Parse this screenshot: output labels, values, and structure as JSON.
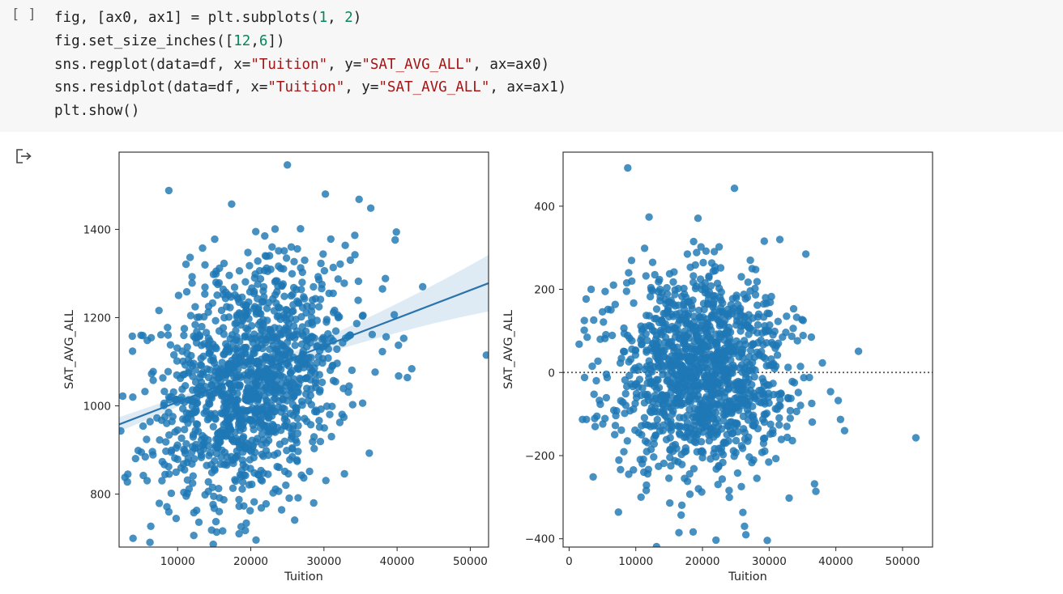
{
  "cell": {
    "run_indicator": "[ ]",
    "code_lines": [
      [
        {
          "t": "fig, [ax0, ax1] = plt.subplots("
        },
        {
          "t": "1",
          "c": "n"
        },
        {
          "t": ", "
        },
        {
          "t": "2",
          "c": "n"
        },
        {
          "t": ")"
        }
      ],
      [
        {
          "t": "fig.set_size_inches(["
        },
        {
          "t": "12",
          "c": "n"
        },
        {
          "t": ","
        },
        {
          "t": "6",
          "c": "n"
        },
        {
          "t": "])"
        }
      ],
      [
        {
          "t": "sns.regplot(data=df, x="
        },
        {
          "t": "\"Tuition\"",
          "c": "s"
        },
        {
          "t": ", y="
        },
        {
          "t": "\"SAT_AVG_ALL\"",
          "c": "s"
        },
        {
          "t": ", ax=ax0)"
        }
      ],
      [
        {
          "t": "sns.residplot(data=df, x="
        },
        {
          "t": "\"Tuition\"",
          "c": "s"
        },
        {
          "t": ", y="
        },
        {
          "t": "\"SAT_AVG_ALL\"",
          "c": "s"
        },
        {
          "t": ", ax=ax1)"
        }
      ],
      [
        {
          "t": "plt.show()"
        }
      ]
    ],
    "output_icon": "output-arrow-icon"
  },
  "colors": {
    "point": "#1f77b4",
    "fit_line": "#2a74ad",
    "ci_band": "#1f77b4",
    "zero_line": "#555555",
    "frame": "#262626"
  },
  "chart_data": [
    {
      "type": "scatter",
      "subtype": "regplot",
      "xlabel": "Tuition",
      "ylabel": "SAT_AVG_ALL",
      "xlim": [
        2000,
        52500
      ],
      "ylim": [
        680,
        1575
      ],
      "xticks": [
        10000,
        20000,
        30000,
        40000,
        50000
      ],
      "xtick_labels": [
        "10000",
        "20000",
        "30000",
        "40000",
        "50000"
      ],
      "yticks": [
        800,
        1000,
        1200,
        1400
      ],
      "ytick_labels": [
        "800",
        "1000",
        "1200",
        "1400"
      ],
      "regression": {
        "x": [
          2000,
          52500
        ],
        "y": [
          958,
          1278
        ],
        "ci_x": [
          2000,
          20000,
          52500
        ],
        "ci_half_width": [
          14,
          6,
          40
        ]
      },
      "points": {
        "center": [
          20000,
          1050
        ],
        "spread": [
          6500,
          130
        ],
        "notable": [
          [
            25000,
            1546
          ],
          [
            8800,
            1488
          ],
          [
            30200,
            1480
          ],
          [
            34800,
            1468
          ],
          [
            36400,
            1448
          ],
          [
            38000,
            1265
          ],
          [
            40900,
            1153
          ],
          [
            41400,
            1064
          ],
          [
            42000,
            1084
          ],
          [
            43500,
            1270
          ],
          [
            52200,
            1115
          ],
          [
            26000,
            741
          ],
          [
            18400,
            710
          ],
          [
            32800,
            846
          ],
          [
            36200,
            893
          ],
          [
            5000,
            1160
          ],
          [
            3800,
            1158
          ],
          [
            3200,
            845
          ],
          [
            2800,
            838
          ],
          [
            2500,
            1022
          ],
          [
            8800,
            760
          ],
          [
            12600,
            763
          ],
          [
            15000,
            768
          ]
        ]
      }
    },
    {
      "type": "scatter",
      "subtype": "residplot",
      "xlabel": "Tuition",
      "ylabel": "SAT_AVG_ALL",
      "xlim": [
        -900,
        54500
      ],
      "ylim": [
        -420,
        530
      ],
      "xticks": [
        0,
        10000,
        20000,
        30000,
        40000,
        50000
      ],
      "xtick_labels": [
        "0",
        "10000",
        "20000",
        "30000",
        "40000",
        "50000"
      ],
      "yticks": [
        -400,
        -200,
        0,
        200,
        400
      ],
      "ytick_labels": [
        "−400",
        "−200",
        "0",
        "200",
        "400"
      ],
      "reference_line": 0,
      "points": {
        "center": [
          20000,
          0
        ],
        "spread": [
          6500,
          125
        ],
        "notable": [
          [
            8800,
            492
          ],
          [
            24800,
            443
          ],
          [
            31600,
            320
          ],
          [
            35500,
            285
          ],
          [
            43400,
            51
          ],
          [
            52000,
            -157
          ],
          [
            26300,
            -370
          ],
          [
            16800,
            -343
          ],
          [
            33000,
            -302
          ],
          [
            36800,
            -268
          ],
          [
            37000,
            -286
          ],
          [
            40700,
            -113
          ],
          [
            41300,
            -140
          ],
          [
            39200,
            -46
          ],
          [
            1500,
            68
          ],
          [
            3300,
            200
          ],
          [
            2000,
            -113
          ],
          [
            2600,
            -113
          ],
          [
            5000,
            146
          ]
        ]
      }
    }
  ]
}
